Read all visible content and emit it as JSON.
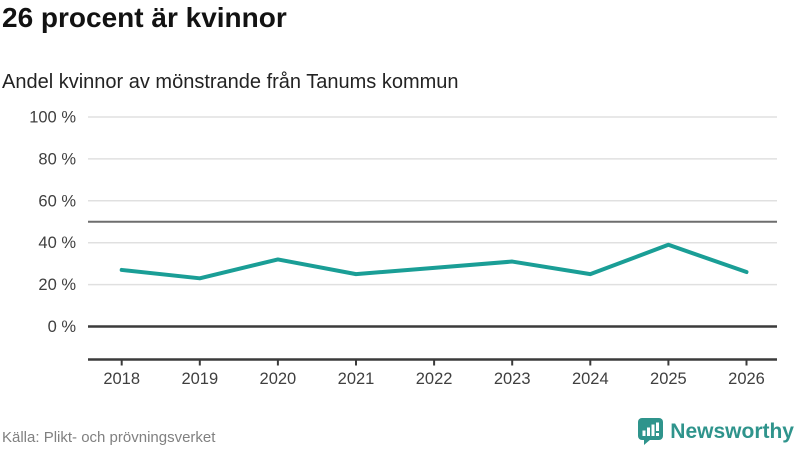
{
  "header": {
    "title": "26 procent är kvinnor",
    "subtitle": "Andel kvinnor av mönstrande från Tanums kommun"
  },
  "chart_data": {
    "type": "line",
    "title": "26 procent är kvinnor",
    "subtitle": "Andel kvinnor av mönstrande från Tanums kommun",
    "x": [
      2018,
      2019,
      2020,
      2021,
      2022,
      2023,
      2024,
      2025,
      2026
    ],
    "series": [
      {
        "name": "Andel kvinnor av mönstrande",
        "color": "#1a9e96",
        "values": [
          27,
          23,
          32,
          25,
          28,
          31,
          25,
          39,
          26
        ]
      }
    ],
    "xlabel": "",
    "ylabel": "",
    "ylim": [
      0,
      100
    ],
    "yticks": [
      0,
      20,
      40,
      60,
      80,
      100
    ],
    "ytick_suffix": " %",
    "reference_line": 50,
    "grid": true,
    "legend": false
  },
  "footer": {
    "source": "Källa: Plikt- och prövningsverket",
    "brand": "Newsworthy"
  },
  "colors": {
    "accent": "#1a9e96",
    "brand": "#2f948c",
    "title": "#121212",
    "subtitle": "#232323",
    "tick_label": "#3f3f3f",
    "grid": "#e0e0e0",
    "reference_line": "#6e6e6e",
    "zero_line": "#3b3b3b",
    "axis": "#3b3b3b",
    "source": "#808080"
  }
}
